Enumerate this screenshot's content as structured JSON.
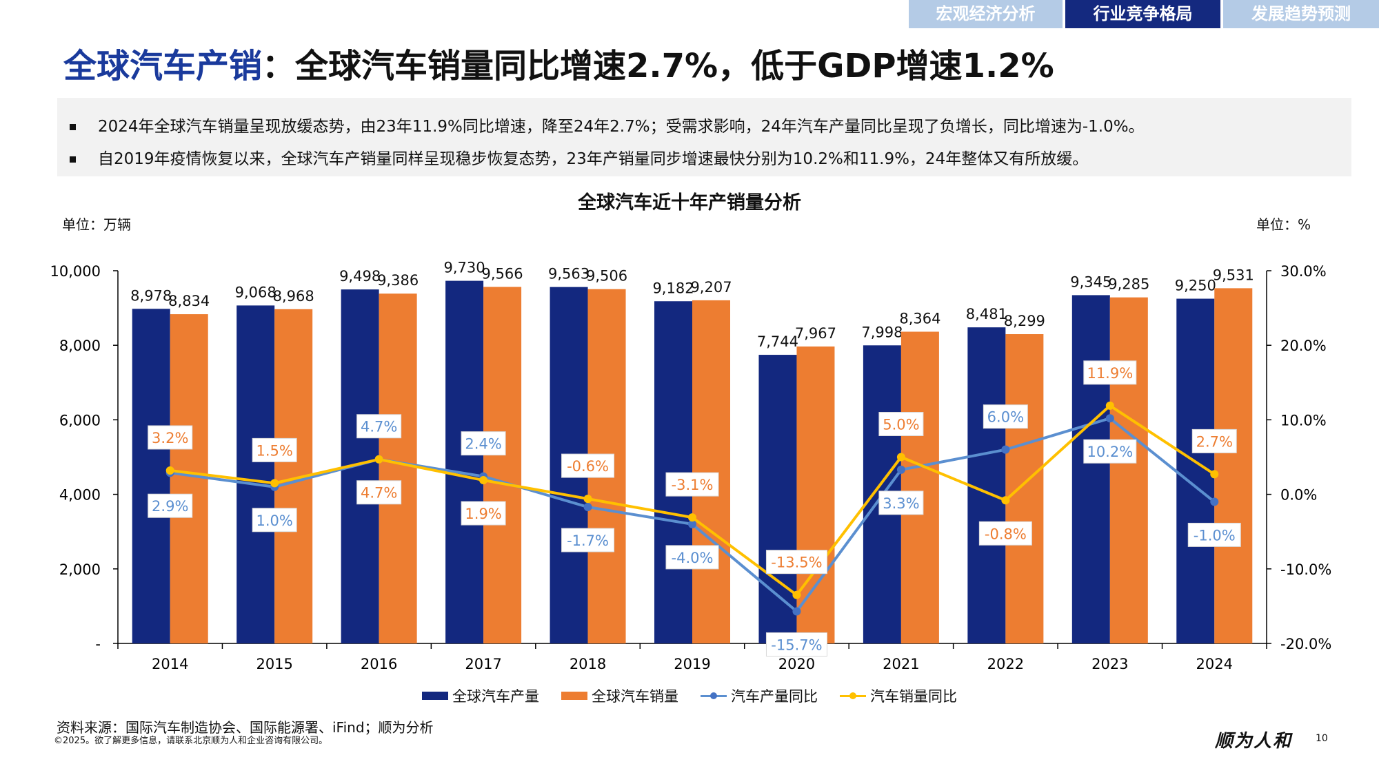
{
  "tabs": [
    {
      "label": "宏观经济分析",
      "active": false
    },
    {
      "label": "行业竞争格局",
      "active": true
    },
    {
      "label": "发展趋势预测",
      "active": false
    }
  ],
  "title": {
    "highlight": "全球汽车产销",
    "rest": "：全球汽车销量同比增速2.7%，低于GDP增速1.2%"
  },
  "summary": [
    "2024年全球汽车销量呈现放缓态势，由23年11.9%同比增速，降至24年2.7%；受需求影响，24年汽车产量同比呈现了负增长，同比增速为-1.0%。",
    "自2019年疫情恢复以来，全球汽车产销量同样呈现稳步恢复态势，23年产销量同步增速最快分别为10.2%和11.9%，24年整体又有所放缓。"
  ],
  "chart_data": {
    "type": "bar",
    "title": "全球汽车近十年产销量分析",
    "ylabel_left": "单位：万辆",
    "ylabel_right": "单位：%",
    "categories": [
      "2014",
      "2015",
      "2016",
      "2017",
      "2018",
      "2019",
      "2020",
      "2021",
      "2022",
      "2023",
      "2024"
    ],
    "ylim_left": [
      0,
      10000
    ],
    "yticks_left": [
      "-",
      "2,000",
      "4,000",
      "6,000",
      "8,000",
      "10,000"
    ],
    "ylim_right": [
      -20,
      30
    ],
    "yticks_right": [
      "-20.0%",
      "-10.0%",
      "0.0%",
      "10.0%",
      "20.0%",
      "30.0%"
    ],
    "grid": false,
    "legend_position": "bottom",
    "series": [
      {
        "name": "全球汽车产量",
        "kind": "bar",
        "axis": "left",
        "color": "#13287f",
        "values": [
          8978,
          9068,
          9498,
          9730,
          9563,
          9182,
          7744,
          7998,
          8481,
          9345,
          9250
        ],
        "labels": [
          "8,978",
          "9,068",
          "9,498",
          "9,730",
          "9,563",
          "9,182",
          "7,744",
          "7,998",
          "8,481",
          "9,345",
          "9,250"
        ]
      },
      {
        "name": "全球汽车销量",
        "kind": "bar",
        "axis": "left",
        "color": "#ed7d31",
        "values": [
          8834,
          8968,
          9386,
          9566,
          9506,
          9207,
          7967,
          8364,
          8299,
          9285,
          9531
        ],
        "labels": [
          "8,834",
          "8,968",
          "9,386",
          "9,566",
          "9,506",
          "9,207",
          "7,967",
          "8,364",
          "8,299",
          "9,285",
          "9,531"
        ]
      },
      {
        "name": "汽车产量同比",
        "kind": "line",
        "axis": "right",
        "color": "#5b8fd0",
        "values": [
          2.9,
          1.0,
          4.7,
          2.4,
          -1.7,
          -4.0,
          -15.7,
          3.3,
          6.0,
          10.2,
          -1.0
        ],
        "labels": [
          "2.9%",
          "1.0%",
          "4.7%",
          "2.4%",
          "-1.7%",
          "-4.0%",
          "-15.7%",
          "3.3%",
          "6.0%",
          "10.2%",
          "-1.0%"
        ]
      },
      {
        "name": "汽车销量同比",
        "kind": "line",
        "axis": "right",
        "color": "#ffc000",
        "label_color": "#ed7d31",
        "values": [
          3.2,
          1.5,
          4.7,
          1.9,
          -0.6,
          -3.1,
          -13.5,
          5.0,
          -0.8,
          11.9,
          2.7
        ],
        "labels": [
          "3.2%",
          "1.5%",
          "4.7%",
          "1.9%",
          "-0.6%",
          "-3.1%",
          "-13.5%",
          "5.0%",
          "-0.8%",
          "11.9%",
          "2.7%"
        ]
      }
    ]
  },
  "footer": {
    "source": "资料来源：国际汽车制造协会、国际能源署、iFind；顺为分析",
    "copyright": "©2025。欲了解更多信息，请联系北京顺为人和企业咨询有限公司。",
    "logo": "顺为人和",
    "page": "10"
  }
}
